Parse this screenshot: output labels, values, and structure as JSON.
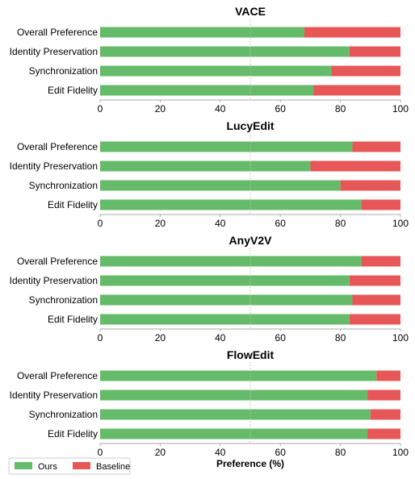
{
  "chart_data": [
    {
      "type": "bar",
      "orientation": "horizontal",
      "stacked": true,
      "title": "VACE",
      "categories": [
        "Overall Preference",
        "Identity Preservation",
        "Synchronization",
        "Edit Fidelity"
      ],
      "series": [
        {
          "name": "Ours",
          "values": [
            68,
            83,
            77,
            71
          ]
        },
        {
          "name": "Baseline",
          "values": [
            32,
            17,
            23,
            29
          ]
        }
      ],
      "xlim": [
        0,
        100
      ],
      "xticks": [
        0,
        20,
        40,
        60,
        80,
        100
      ],
      "reference_line": 50,
      "grid": false
    },
    {
      "type": "bar",
      "orientation": "horizontal",
      "stacked": true,
      "title": "LucyEdit",
      "categories": [
        "Overall Preference",
        "Identity Preservation",
        "Synchronization",
        "Edit Fidelity"
      ],
      "series": [
        {
          "name": "Ours",
          "values": [
            84,
            70,
            80,
            87
          ]
        },
        {
          "name": "Baseline",
          "values": [
            16,
            30,
            20,
            13
          ]
        }
      ],
      "xlim": [
        0,
        100
      ],
      "xticks": [
        0,
        20,
        40,
        60,
        80,
        100
      ],
      "reference_line": 50,
      "grid": false
    },
    {
      "type": "bar",
      "orientation": "horizontal",
      "stacked": true,
      "title": "AnyV2V",
      "categories": [
        "Overall Preference",
        "Identity Preservation",
        "Synchronization",
        "Edit Fidelity"
      ],
      "series": [
        {
          "name": "Ours",
          "values": [
            87,
            83,
            84,
            83
          ]
        },
        {
          "name": "Baseline",
          "values": [
            13,
            17,
            16,
            17
          ]
        }
      ],
      "xlim": [
        0,
        100
      ],
      "xticks": [
        0,
        20,
        40,
        60,
        80,
        100
      ],
      "reference_line": 50,
      "grid": false
    },
    {
      "type": "bar",
      "orientation": "horizontal",
      "stacked": true,
      "title": "FlowEdit",
      "categories": [
        "Overall Preference",
        "Identity Preservation",
        "Synchronization",
        "Edit Fidelity"
      ],
      "series": [
        {
          "name": "Ours",
          "values": [
            92,
            89,
            90,
            89
          ]
        },
        {
          "name": "Baseline",
          "values": [
            8,
            11,
            10,
            11
          ]
        }
      ],
      "xlim": [
        0,
        100
      ],
      "xticks": [
        0,
        20,
        40,
        60,
        80,
        100
      ],
      "reference_line": 50,
      "grid": false,
      "xlabel": "Preference (%)"
    }
  ],
  "legend": {
    "placement": "bottom-left",
    "entries": [
      "Ours",
      "Baseline"
    ]
  },
  "colors": {
    "Ours": "#66bb6a",
    "Baseline": "#e85757",
    "axis": "#aaaaaa",
    "reference_line": "#bbbbbb"
  }
}
